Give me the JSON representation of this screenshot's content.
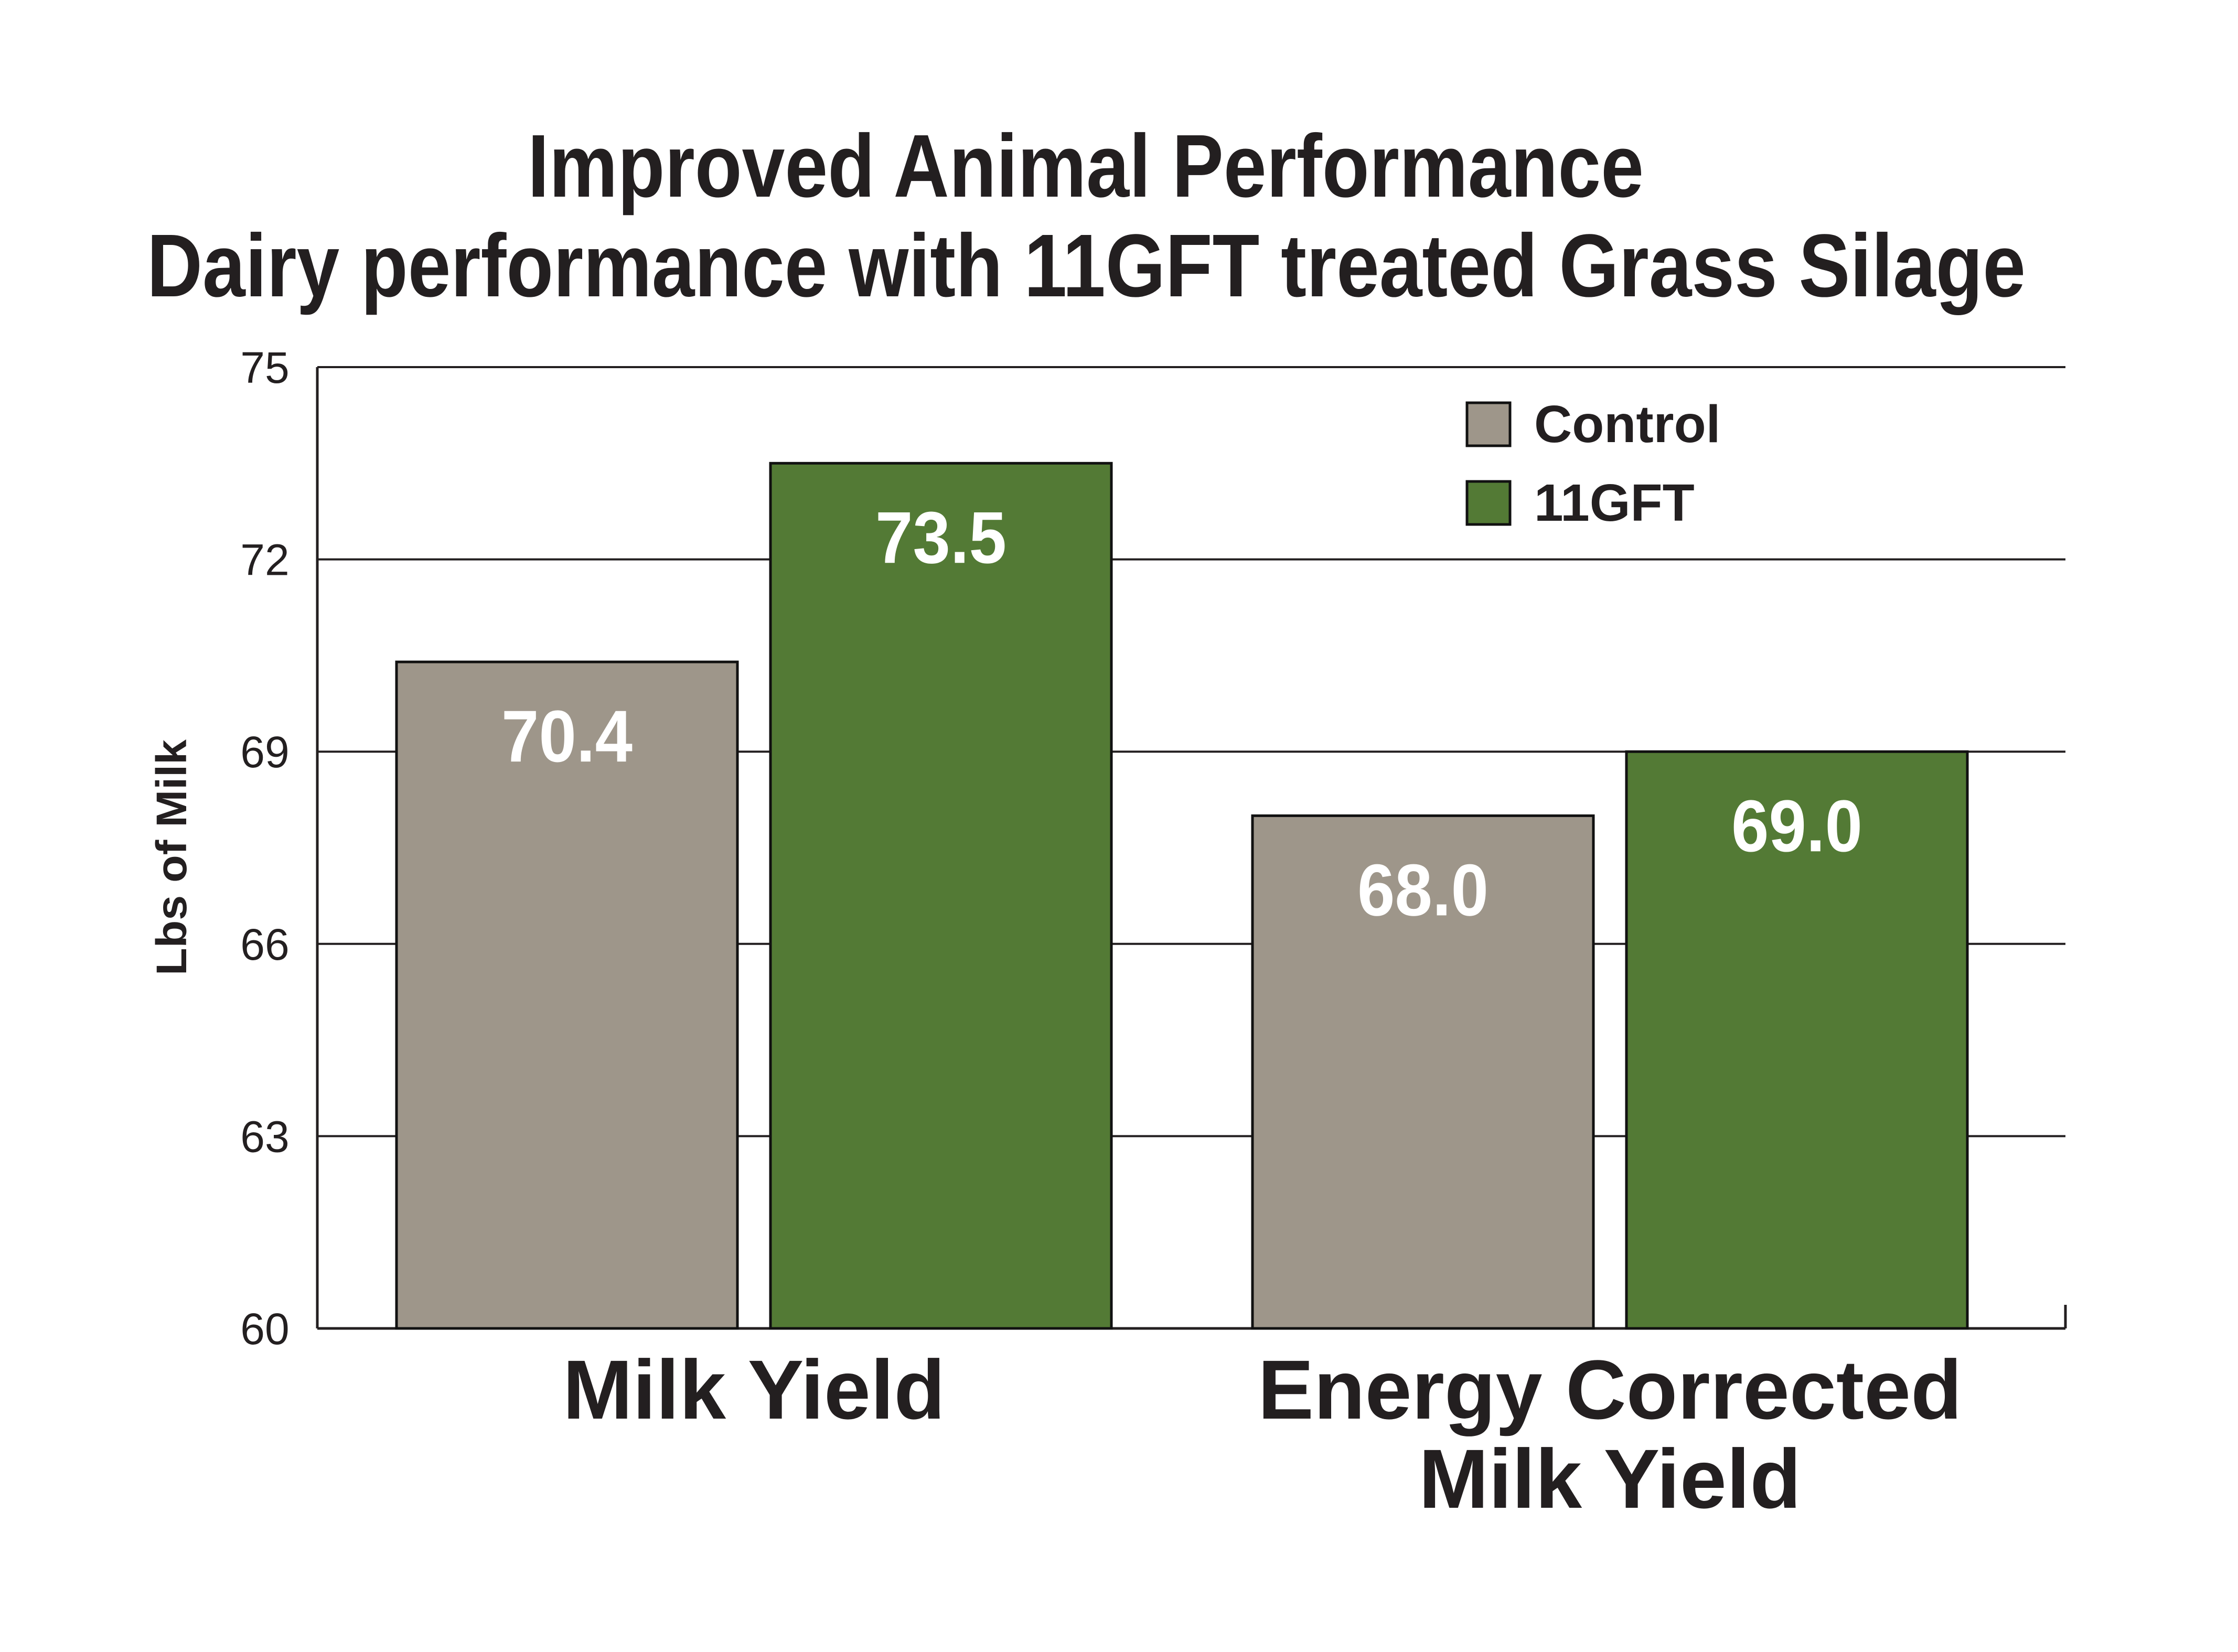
{
  "chart_data": {
    "type": "bar",
    "title": "Improved Animal Performance",
    "subtitle": "Dairy performance with 11GFT treated Grass Silage",
    "ylabel": "Lbs of Milk",
    "xlabel": "",
    "ylim": [
      60,
      75
    ],
    "yticks": [
      60,
      63,
      66,
      69,
      72,
      75
    ],
    "grid": true,
    "legend_position": "top-right",
    "categories": [
      [
        "Milk Yield"
      ],
      [
        "Energy Corrected",
        "Milk Yield"
      ]
    ],
    "series": [
      {
        "name": "Control",
        "color": "#9e968a",
        "values": [
          70.4,
          68.0
        ],
        "labels": [
          "70.4",
          "68.0"
        ]
      },
      {
        "name": "11GFT",
        "color": "#537a35",
        "values": [
          73.5,
          69.0
        ],
        "labels": [
          "73.5",
          "69.0"
        ]
      }
    ]
  }
}
